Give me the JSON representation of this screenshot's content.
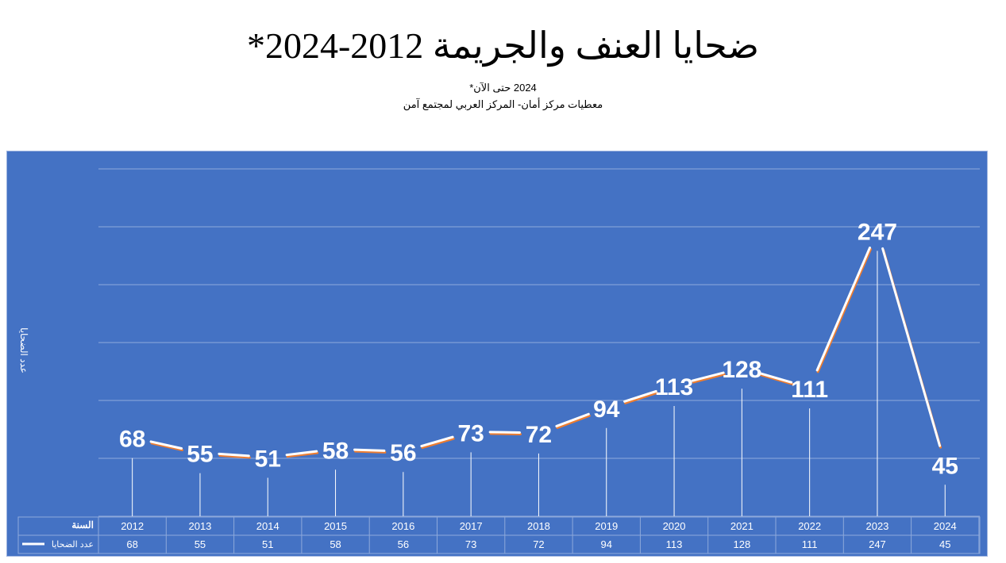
{
  "title": "ضحايا العنف والجريمة 2012-2024*",
  "subtitle_line1": "2024 حتى الآن*",
  "subtitle_line2": "معطيات مركز أمان- المركز العربي لمجتمع آمن",
  "colors": {
    "panel_bg": "#4472c4",
    "line_main": "#ffffff",
    "line_shadow": "#ed7d31",
    "text": "#ffffff"
  },
  "chart_data": {
    "type": "line",
    "ylabel": "عدد الضحايا",
    "table_header_label": "السنة",
    "series": [
      {
        "name": "عدد الضحايا",
        "values": [
          68,
          55,
          51,
          58,
          56,
          73,
          72,
          94,
          113,
          128,
          111,
          247,
          45
        ]
      }
    ],
    "categories": [
      "2012",
      "2013",
      "2014",
      "2015",
      "2016",
      "2017",
      "2018",
      "2019",
      "2020",
      "2021",
      "2022",
      "2023",
      "2024"
    ],
    "ylim": [
      0,
      300
    ],
    "grid": true,
    "data_table": true
  }
}
